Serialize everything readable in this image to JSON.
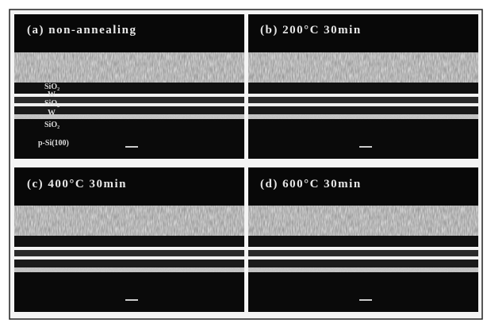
{
  "panels": [
    {
      "label": "(a) non-annealing",
      "layers": [
        "SiO₂",
        "W",
        "SiO₂",
        "W",
        "SiO₂",
        "p-Si(100)"
      ]
    },
    {
      "label": "(b) 200°C 30min"
    },
    {
      "label": "(c) 400°C 30min"
    },
    {
      "label": "(d) 600°C 30min"
    }
  ]
}
